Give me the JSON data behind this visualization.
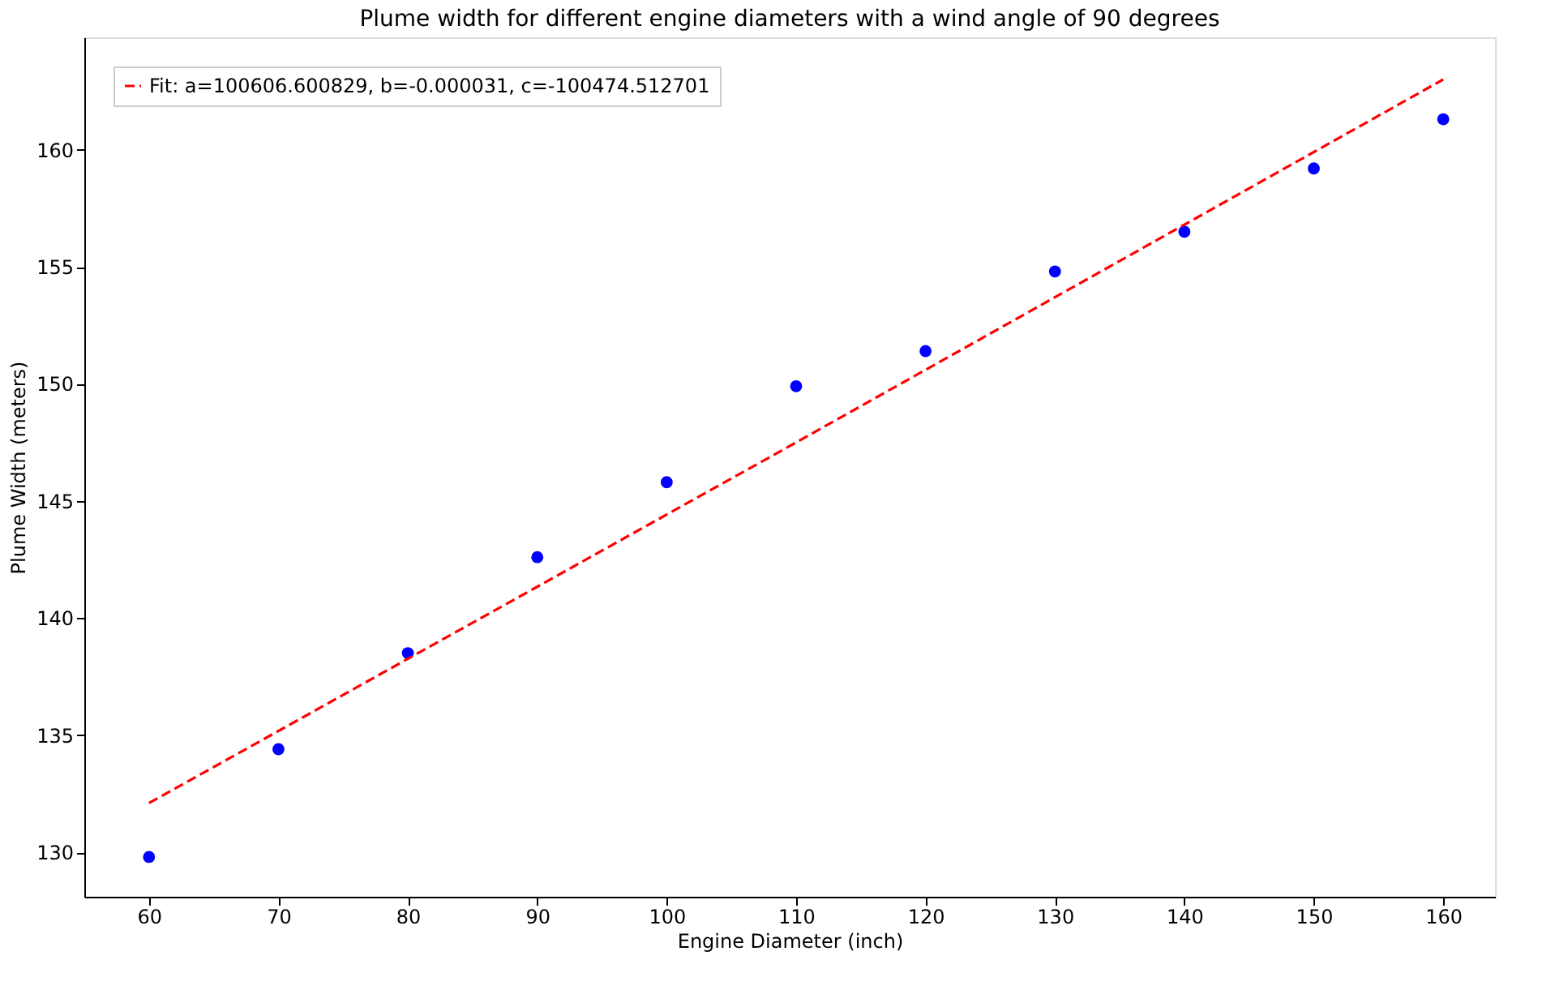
{
  "chart_data": {
    "type": "scatter",
    "title": "Plume width for different engine diameters with a wind angle of 90 degrees",
    "xlabel": "Engine Diameter (inch)",
    "ylabel": "Plume Width (meters)",
    "xlim": [
      55,
      164
    ],
    "ylim": [
      128.1,
      164.8
    ],
    "xticks": [
      60,
      70,
      80,
      90,
      100,
      110,
      120,
      130,
      140,
      150,
      160
    ],
    "yticks": [
      130,
      135,
      140,
      145,
      150,
      155,
      160
    ],
    "grid": false,
    "legend": "top left",
    "series": [
      {
        "color": "#0000ff",
        "marker": "circle",
        "x": [
          60,
          70,
          80,
          90,
          100,
          110,
          120,
          130,
          140,
          150,
          160
        ],
        "values": [
          129.8,
          134.4,
          138.5,
          142.6,
          145.8,
          149.9,
          151.4,
          154.8,
          156.5,
          159.2,
          161.3
        ]
      },
      {
        "type": "line",
        "name": "Fit: a=100606.600829, b=-0.000031, c=-100474.512701",
        "color": "#ff0000",
        "line_style": "dashed",
        "x": [
          60,
          110,
          160
        ],
        "values": [
          132.1,
          147.5,
          163.0
        ]
      }
    ]
  }
}
